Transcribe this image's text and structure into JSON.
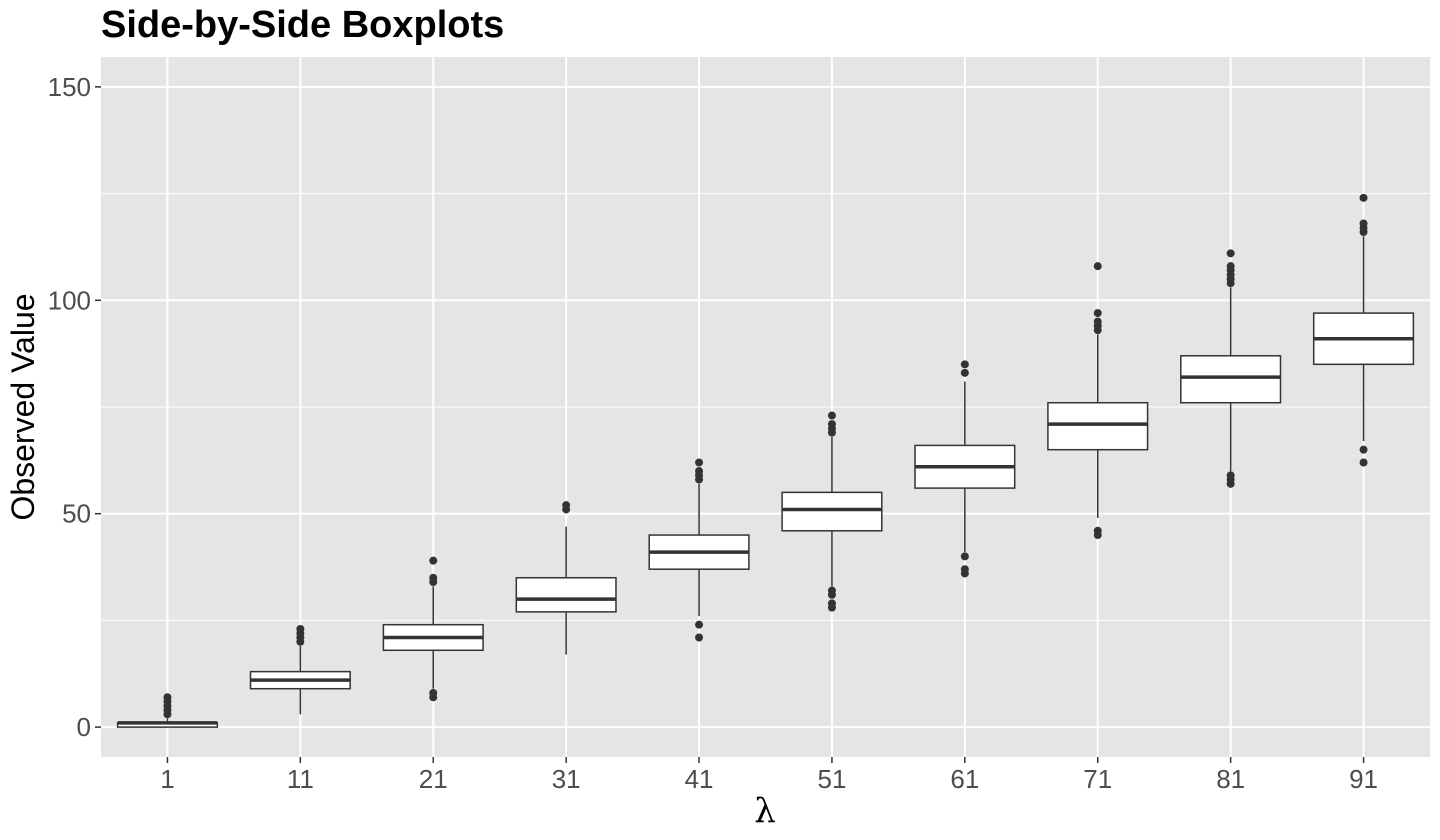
{
  "chart_data": {
    "type": "boxplot",
    "title": "Side-by-Side Boxplots",
    "xlabel": "λ",
    "ylabel": "Observed Value",
    "categories": [
      "1",
      "11",
      "21",
      "31",
      "41",
      "51",
      "61",
      "71",
      "81",
      "91"
    ],
    "y_ticks": [
      0,
      50,
      100,
      150
    ],
    "ylim": [
      -7,
      157
    ],
    "grid": true,
    "panel_background": "#e5e5e5",
    "grid_color": "#ffffff",
    "box_fill": "#ffffff",
    "box_stroke": "#333333",
    "boxes": [
      {
        "category": "1",
        "whisker_low": 0,
        "q1": 0,
        "median": 1,
        "q3": 1,
        "whisker_high": 2,
        "outliers": [
          3,
          4,
          5,
          6,
          7
        ]
      },
      {
        "category": "11",
        "whisker_low": 3,
        "q1": 9,
        "median": 11,
        "q3": 13,
        "whisker_high": 19,
        "outliers": [
          20,
          21,
          22,
          23
        ]
      },
      {
        "category": "21",
        "whisker_low": 9,
        "q1": 18,
        "median": 21,
        "q3": 24,
        "whisker_high": 33,
        "outliers": [
          7,
          8,
          34,
          35,
          39
        ]
      },
      {
        "category": "31",
        "whisker_low": 17,
        "q1": 27,
        "median": 30,
        "q3": 35,
        "whisker_high": 47,
        "outliers": [
          51,
          52
        ]
      },
      {
        "category": "41",
        "whisker_low": 26,
        "q1": 37,
        "median": 41,
        "q3": 45,
        "whisker_high": 57,
        "outliers": [
          21,
          24,
          58,
          59,
          60,
          62
        ]
      },
      {
        "category": "51",
        "whisker_low": 33,
        "q1": 46,
        "median": 51,
        "q3": 55,
        "whisker_high": 68,
        "outliers": [
          28,
          29,
          31,
          32,
          69,
          70,
          71,
          73
        ]
      },
      {
        "category": "61",
        "whisker_low": 41,
        "q1": 56,
        "median": 61,
        "q3": 66,
        "whisker_high": 81,
        "outliers": [
          36,
          37,
          40,
          83,
          85
        ]
      },
      {
        "category": "71",
        "whisker_low": 49,
        "q1": 65,
        "median": 71,
        "q3": 76,
        "whisker_high": 92,
        "outliers": [
          45,
          46,
          93,
          94,
          95,
          97,
          108
        ]
      },
      {
        "category": "81",
        "whisker_low": 60,
        "q1": 76,
        "median": 82,
        "q3": 87,
        "whisker_high": 103,
        "outliers": [
          57,
          58,
          59,
          104,
          105,
          106,
          107,
          108,
          111
        ]
      },
      {
        "category": "91",
        "whisker_low": 67,
        "q1": 85,
        "median": 91,
        "q3": 97,
        "whisker_high": 115,
        "outliers": [
          62,
          65,
          116,
          117,
          118,
          124
        ]
      }
    ]
  }
}
